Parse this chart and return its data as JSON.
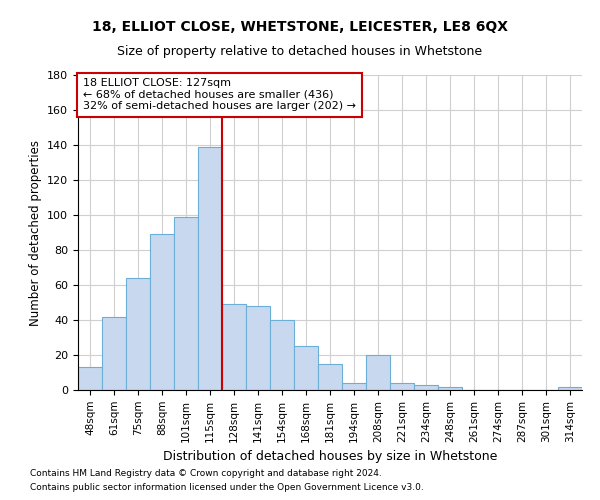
{
  "title1": "18, ELLIOT CLOSE, WHETSTONE, LEICESTER, LE8 6QX",
  "title2": "Size of property relative to detached houses in Whetstone",
  "xlabel": "Distribution of detached houses by size in Whetstone",
  "ylabel": "Number of detached properties",
  "categories": [
    "48sqm",
    "61sqm",
    "75sqm",
    "88sqm",
    "101sqm",
    "115sqm",
    "128sqm",
    "141sqm",
    "154sqm",
    "168sqm",
    "181sqm",
    "194sqm",
    "208sqm",
    "221sqm",
    "234sqm",
    "248sqm",
    "261sqm",
    "274sqm",
    "287sqm",
    "301sqm",
    "314sqm"
  ],
  "values": [
    13,
    42,
    64,
    89,
    99,
    139,
    49,
    48,
    40,
    25,
    15,
    4,
    20,
    4,
    3,
    2,
    0,
    0,
    0,
    0,
    2
  ],
  "bar_color": "#c8d9ef",
  "bar_edge_color": "#6baed6",
  "vline_color": "#cc0000",
  "annotation_box_color": "#cc0000",
  "annotation_text1": "18 ELLIOT CLOSE: 127sqm",
  "annotation_text2": "← 68% of detached houses are smaller (436)",
  "annotation_text3": "32% of semi-detached houses are larger (202) →",
  "ylim": [
    0,
    180
  ],
  "yticks": [
    0,
    20,
    40,
    60,
    80,
    100,
    120,
    140,
    160,
    180
  ],
  "footnote1": "Contains HM Land Registry data © Crown copyright and database right 2024.",
  "footnote2": "Contains public sector information licensed under the Open Government Licence v3.0.",
  "bg_color": "#ffffff",
  "grid_color": "#d0d0d0"
}
